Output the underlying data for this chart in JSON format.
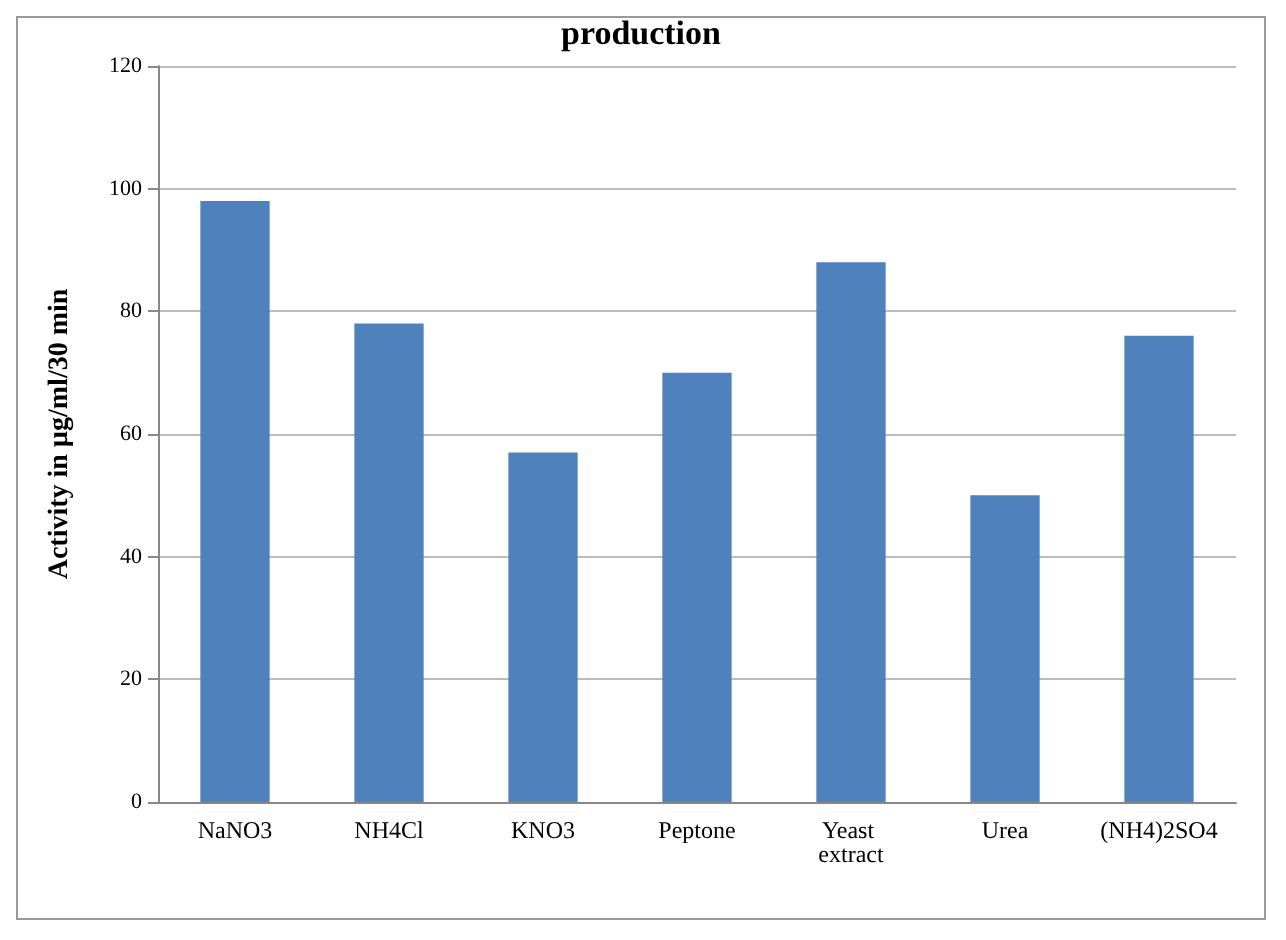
{
  "chart_data": {
    "type": "bar",
    "title": "production",
    "ylabel": "Activity in µg/ml/30 min",
    "categories": [
      "NaNO3",
      "NH4Cl",
      "KNO3",
      "Peptone",
      "Yeast extract",
      "Urea",
      "(NH4)2SO4"
    ],
    "values": [
      98,
      78,
      57,
      70,
      88,
      50,
      76
    ],
    "color": "#4f81bd",
    "ylim": [
      0,
      120
    ],
    "yticks": [
      0,
      20,
      40,
      60,
      80,
      100,
      120
    ],
    "grid": "y"
  }
}
